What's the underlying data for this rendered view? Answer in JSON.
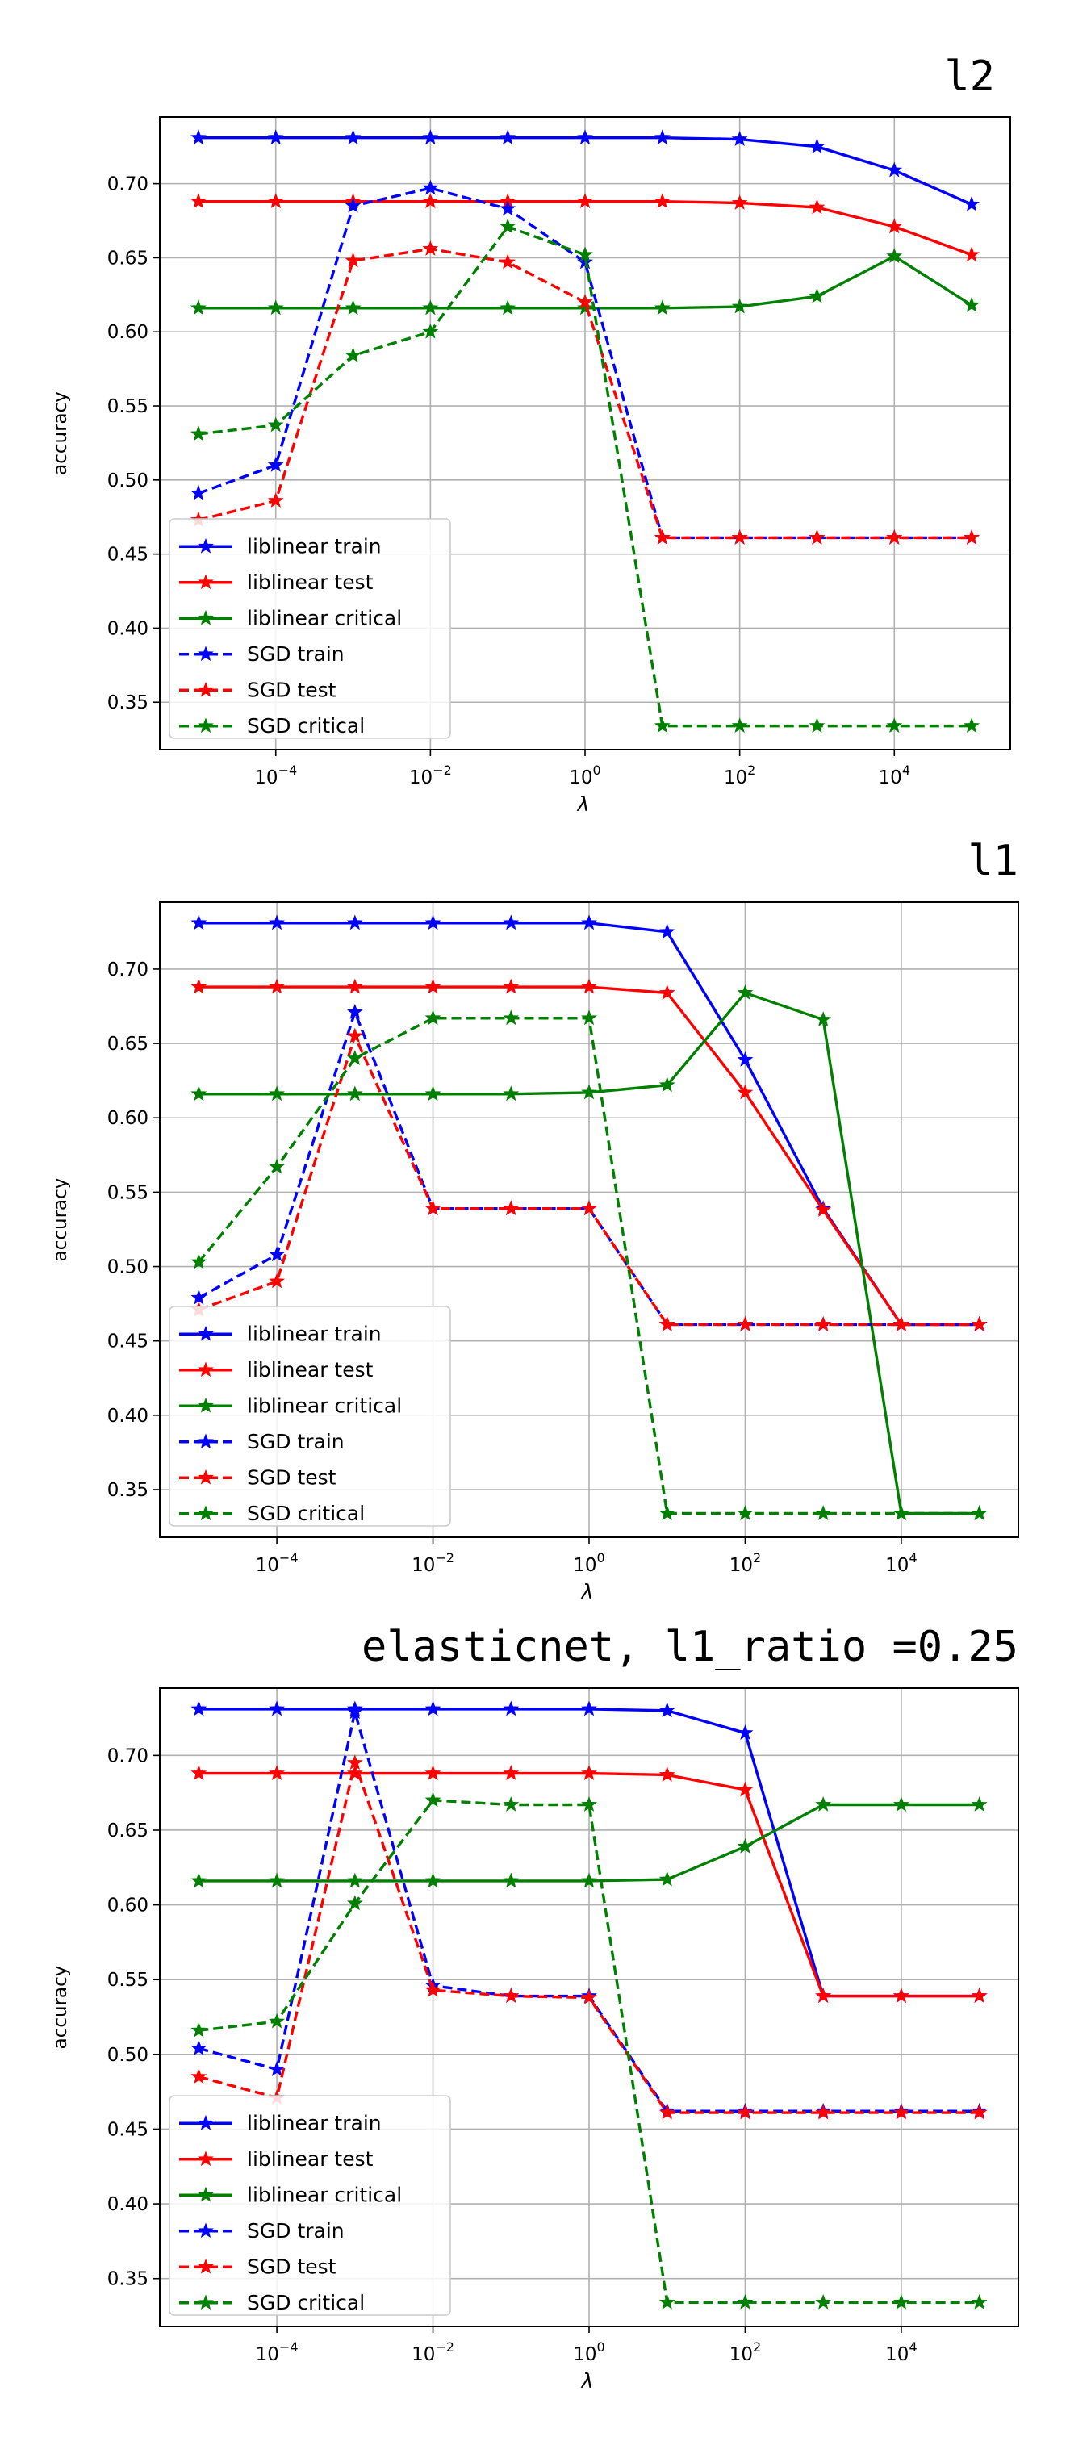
{
  "chart_data": [
    {
      "type": "line",
      "title": "l2",
      "xlabel": "λ",
      "ylabel": "accuracy",
      "x_scale": "log",
      "x": [
        1e-05,
        0.0001,
        0.001,
        0.01,
        0.1,
        1,
        10,
        100,
        1000,
        10000,
        100000
      ],
      "x_ticks": [
        {
          "value": 0.0001,
          "base": "10",
          "exp": "−4"
        },
        {
          "value": 0.01,
          "base": "10",
          "exp": "−2"
        },
        {
          "value": 1,
          "base": "10",
          "exp": "0"
        },
        {
          "value": 100,
          "base": "10",
          "exp": "2"
        },
        {
          "value": 10000,
          "base": "10",
          "exp": "4"
        }
      ],
      "y_ticks": [
        "0.35",
        "0.40",
        "0.45",
        "0.50",
        "0.55",
        "0.60",
        "0.65",
        "0.70"
      ],
      "ylim": [
        0.318,
        0.745
      ],
      "grid": true,
      "legend_position": "lower-left",
      "series": [
        {
          "name": "liblinear train",
          "color": "#0000ff",
          "style": "solid",
          "values": [
            0.731,
            0.731,
            0.731,
            0.731,
            0.731,
            0.731,
            0.731,
            0.73,
            0.725,
            0.709,
            0.686
          ]
        },
        {
          "name": "liblinear test",
          "color": "#ff0000",
          "style": "solid",
          "values": [
            0.688,
            0.688,
            0.688,
            0.688,
            0.688,
            0.688,
            0.688,
            0.687,
            0.684,
            0.671,
            0.652
          ]
        },
        {
          "name": "liblinear critical",
          "color": "#008000",
          "style": "solid",
          "values": [
            0.616,
            0.616,
            0.616,
            0.616,
            0.616,
            0.616,
            0.616,
            0.617,
            0.624,
            0.651,
            0.618
          ]
        },
        {
          "name": "SGD train",
          "color": "#0000ff",
          "style": "dashed",
          "values": [
            0.491,
            0.51,
            0.685,
            0.697,
            0.683,
            0.647,
            0.461,
            0.461,
            0.461,
            0.461,
            0.461
          ]
        },
        {
          "name": "SGD test",
          "color": "#ff0000",
          "style": "dashed",
          "values": [
            0.473,
            0.486,
            0.648,
            0.656,
            0.647,
            0.62,
            0.461,
            0.461,
            0.461,
            0.461,
            0.461
          ]
        },
        {
          "name": "SGD critical",
          "color": "#008000",
          "style": "dashed",
          "values": [
            0.531,
            0.537,
            0.584,
            0.6,
            0.671,
            0.652,
            0.334,
            0.334,
            0.334,
            0.334,
            0.334
          ]
        }
      ]
    },
    {
      "type": "line",
      "title": "l1",
      "xlabel": "λ",
      "ylabel": "accuracy",
      "x_scale": "log",
      "x": [
        1e-05,
        0.0001,
        0.001,
        0.01,
        0.1,
        1,
        10,
        100,
        1000,
        10000,
        100000
      ],
      "x_ticks": [
        {
          "value": 0.0001,
          "base": "10",
          "exp": "−4"
        },
        {
          "value": 0.01,
          "base": "10",
          "exp": "−2"
        },
        {
          "value": 1,
          "base": "10",
          "exp": "0"
        },
        {
          "value": 100,
          "base": "10",
          "exp": "2"
        },
        {
          "value": 10000,
          "base": "10",
          "exp": "4"
        }
      ],
      "y_ticks": [
        "0.35",
        "0.40",
        "0.45",
        "0.50",
        "0.55",
        "0.60",
        "0.65",
        "0.70"
      ],
      "ylim": [
        0.318,
        0.745
      ],
      "grid": true,
      "legend_position": "lower-left",
      "series": [
        {
          "name": "liblinear train",
          "color": "#0000ff",
          "style": "solid",
          "values": [
            0.731,
            0.731,
            0.731,
            0.731,
            0.731,
            0.731,
            0.725,
            0.639,
            0.539,
            0.461,
            0.461
          ]
        },
        {
          "name": "liblinear test",
          "color": "#ff0000",
          "style": "solid",
          "values": [
            0.688,
            0.688,
            0.688,
            0.688,
            0.688,
            0.688,
            0.684,
            0.617,
            0.538,
            0.461,
            0.461
          ]
        },
        {
          "name": "liblinear critical",
          "color": "#008000",
          "style": "solid",
          "values": [
            0.616,
            0.616,
            0.616,
            0.616,
            0.616,
            0.617,
            0.622,
            0.684,
            0.666,
            0.334,
            0.334
          ]
        },
        {
          "name": "SGD train",
          "color": "#0000ff",
          "style": "dashed",
          "values": [
            0.479,
            0.508,
            0.671,
            0.539,
            0.539,
            0.539,
            0.461,
            0.461,
            0.461,
            0.461,
            0.461
          ]
        },
        {
          "name": "SGD test",
          "color": "#ff0000",
          "style": "dashed",
          "values": [
            0.471,
            0.49,
            0.655,
            0.539,
            0.539,
            0.539,
            0.461,
            0.461,
            0.461,
            0.461,
            0.461
          ]
        },
        {
          "name": "SGD critical",
          "color": "#008000",
          "style": "dashed",
          "values": [
            0.503,
            0.567,
            0.64,
            0.667,
            0.667,
            0.667,
            0.334,
            0.334,
            0.334,
            0.334,
            0.334
          ]
        }
      ]
    },
    {
      "type": "line",
      "title": "elasticnet, l1_ratio =0.25",
      "xlabel": "λ",
      "ylabel": "accuracy",
      "x_scale": "log",
      "x": [
        1e-05,
        0.0001,
        0.001,
        0.01,
        0.1,
        1,
        10,
        100,
        1000,
        10000,
        100000
      ],
      "x_ticks": [
        {
          "value": 0.0001,
          "base": "10",
          "exp": "−4"
        },
        {
          "value": 0.01,
          "base": "10",
          "exp": "−2"
        },
        {
          "value": 1,
          "base": "10",
          "exp": "0"
        },
        {
          "value": 100,
          "base": "10",
          "exp": "2"
        },
        {
          "value": 10000,
          "base": "10",
          "exp": "4"
        }
      ],
      "y_ticks": [
        "0.35",
        "0.40",
        "0.45",
        "0.50",
        "0.55",
        "0.60",
        "0.65",
        "0.70"
      ],
      "ylim": [
        0.318,
        0.745
      ],
      "grid": true,
      "legend_position": "lower-left",
      "series": [
        {
          "name": "liblinear train",
          "color": "#0000ff",
          "style": "solid",
          "values": [
            0.731,
            0.731,
            0.731,
            0.731,
            0.731,
            0.731,
            0.73,
            0.715,
            0.539,
            0.539,
            0.539
          ]
        },
        {
          "name": "liblinear test",
          "color": "#ff0000",
          "style": "solid",
          "values": [
            0.688,
            0.688,
            0.688,
            0.688,
            0.688,
            0.688,
            0.687,
            0.677,
            0.539,
            0.539,
            0.539
          ]
        },
        {
          "name": "liblinear critical",
          "color": "#008000",
          "style": "solid",
          "values": [
            0.616,
            0.616,
            0.616,
            0.616,
            0.616,
            0.616,
            0.617,
            0.639,
            0.667,
            0.667,
            0.667
          ]
        },
        {
          "name": "SGD train",
          "color": "#0000ff",
          "style": "dashed",
          "values": [
            0.504,
            0.49,
            0.729,
            0.546,
            0.539,
            0.539,
            0.462,
            0.462,
            0.462,
            0.462,
            0.462
          ]
        },
        {
          "name": "SGD test",
          "color": "#ff0000",
          "style": "dashed",
          "values": [
            0.485,
            0.471,
            0.695,
            0.543,
            0.539,
            0.538,
            0.461,
            0.461,
            0.461,
            0.461,
            0.461
          ]
        },
        {
          "name": "SGD critical",
          "color": "#008000",
          "style": "dashed",
          "values": [
            0.516,
            0.522,
            0.601,
            0.67,
            0.667,
            0.667,
            0.334,
            0.334,
            0.334,
            0.334,
            0.334
          ]
        }
      ]
    }
  ]
}
